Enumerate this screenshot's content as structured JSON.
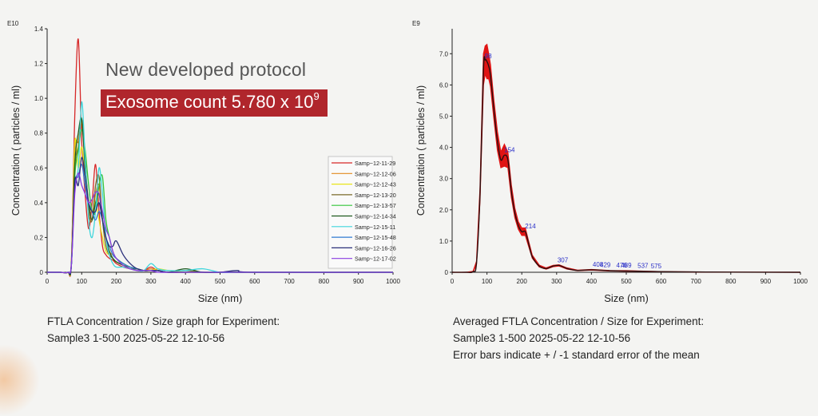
{
  "chart_data": [
    {
      "type": "line",
      "xlabel": "Size (nm)",
      "ylabel": "Concentration ( particles / ml)",
      "y_exponent_label": "E10",
      "xlim": [
        0,
        1000
      ],
      "ylim": [
        0,
        1.4
      ],
      "x_ticks": [
        0,
        100,
        200,
        300,
        400,
        500,
        600,
        700,
        800,
        900,
        1000
      ],
      "y_ticks": [
        0,
        0.2,
        0.4,
        0.6,
        0.8,
        1.0,
        1.2,
        1.4
      ],
      "y_tick_labels": [
        "0",
        "0.2",
        "0.4",
        "0.6",
        "0.8",
        "1.0",
        "1.2",
        "1.4"
      ],
      "x_grid": [
        0,
        20,
        40,
        60,
        70,
        80,
        90,
        100,
        110,
        120,
        130,
        140,
        150,
        160,
        170,
        180,
        190,
        200,
        220,
        240,
        260,
        280,
        300,
        320,
        350,
        400,
        450,
        500,
        550,
        600,
        1000
      ],
      "series": [
        {
          "name": "Samp~12-11-29",
          "color": "#d62728",
          "y": [
            0,
            0,
            0,
            0,
            0.06,
            0.9,
            1.34,
            0.75,
            0.45,
            0.25,
            0.4,
            0.62,
            0.35,
            0.15,
            0.1,
            0.08,
            0.07,
            0.05,
            0.03,
            0.02,
            0.01,
            0.01,
            0.03,
            0.01,
            0,
            0,
            0,
            0,
            0,
            0,
            0
          ]
        },
        {
          "name": "Samp~12-12-06",
          "color": "#e08a1e",
          "y": [
            0,
            0,
            0,
            0,
            0.05,
            0.7,
            0.75,
            0.86,
            0.6,
            0.35,
            0.3,
            0.45,
            0.5,
            0.3,
            0.2,
            0.12,
            0.1,
            0.08,
            0.05,
            0.03,
            0.02,
            0.01,
            0.02,
            0.01,
            0,
            0,
            0,
            0,
            0,
            0,
            0
          ]
        },
        {
          "name": "Samp~12-12-43",
          "color": "#e8e41c",
          "y": [
            0,
            0,
            0,
            0,
            0.05,
            0.75,
            0.6,
            0.72,
            0.55,
            0.4,
            0.35,
            0.4,
            0.3,
            0.2,
            0.12,
            0.1,
            0.08,
            0.06,
            0.04,
            0.02,
            0.02,
            0.01,
            0.01,
            0.02,
            0.01,
            0,
            0,
            0,
            0,
            0,
            0
          ]
        },
        {
          "name": "Samp~12-13-20",
          "color": "#7a6a2a",
          "y": [
            0,
            0,
            0,
            0,
            0.04,
            0.6,
            0.72,
            0.88,
            0.65,
            0.35,
            0.3,
            0.5,
            0.55,
            0.3,
            0.15,
            0.1,
            0.08,
            0.06,
            0.04,
            0.03,
            0.02,
            0.01,
            0.01,
            0.01,
            0,
            0.01,
            0,
            0,
            0,
            0,
            0
          ]
        },
        {
          "name": "Samp~12-13-57",
          "color": "#33c43a",
          "y": [
            0,
            0,
            0,
            0,
            0.04,
            0.55,
            0.7,
            0.82,
            0.7,
            0.5,
            0.35,
            0.35,
            0.5,
            0.55,
            0.3,
            0.2,
            0.12,
            0.08,
            0.05,
            0.03,
            0.02,
            0.01,
            0.01,
            0.01,
            0,
            0,
            0,
            0,
            0,
            0,
            0
          ]
        },
        {
          "name": "Samp~12-14-34",
          "color": "#1f5a1f",
          "y": [
            0,
            0,
            0,
            0,
            0.04,
            0.62,
            0.8,
            0.88,
            0.6,
            0.4,
            0.3,
            0.4,
            0.45,
            0.3,
            0.2,
            0.12,
            0.08,
            0.06,
            0.04,
            0.02,
            0.02,
            0.01,
            0.01,
            0.01,
            0,
            0.02,
            0,
            0,
            0,
            0,
            0
          ]
        },
        {
          "name": "Samp~12-15-11",
          "color": "#3fd6dc",
          "y": [
            0,
            0,
            0,
            0,
            0.04,
            0.5,
            0.6,
            0.98,
            0.65,
            0.3,
            0.2,
            0.35,
            0.6,
            0.45,
            0.2,
            0.1,
            0.05,
            0.03,
            0.03,
            0.02,
            0.01,
            0.01,
            0.05,
            0.02,
            0.01,
            0.01,
            0.02,
            0,
            0,
            0,
            0
          ]
        },
        {
          "name": "Samp~12-15-48",
          "color": "#2f7bd1",
          "y": [
            0,
            0,
            0,
            0,
            0.04,
            0.5,
            0.55,
            0.62,
            0.5,
            0.4,
            0.35,
            0.3,
            0.35,
            0.3,
            0.2,
            0.15,
            0.1,
            0.08,
            0.05,
            0.03,
            0.02,
            0.01,
            0.01,
            0.01,
            0,
            0,
            0,
            0,
            0,
            0,
            0
          ]
        },
        {
          "name": "Samp~12-16-26",
          "color": "#2a2f7a",
          "y": [
            0,
            0,
            0,
            0,
            0.04,
            0.52,
            0.5,
            0.66,
            0.55,
            0.4,
            0.35,
            0.35,
            0.4,
            0.3,
            0.2,
            0.15,
            0.15,
            0.18,
            0.1,
            0.05,
            0.02,
            0.01,
            0.01,
            0.01,
            0,
            0,
            0,
            0,
            0.01,
            0,
            0
          ]
        },
        {
          "name": "Samp~12-17-02",
          "color": "#8a3be0",
          "y": [
            0,
            0,
            0,
            0,
            0.04,
            0.45,
            0.57,
            0.5,
            0.45,
            0.4,
            0.42,
            0.46,
            0.45,
            0.35,
            0.25,
            0.2,
            0.12,
            0.08,
            0.04,
            0.02,
            0.01,
            0.01,
            0.01,
            0,
            0,
            0,
            0,
            0,
            0,
            0,
            0
          ]
        }
      ],
      "caption_line1": "FTLA Concentration / Size graph for Experiment:",
      "caption_line2": "Sample3 1-500 2025-05-22 12-10-56"
    },
    {
      "type": "line",
      "xlabel": "Size (nm)",
      "ylabel": "Concentration ( particles / ml)",
      "y_exponent_label": "E9",
      "xlim": [
        0,
        1000
      ],
      "ylim": [
        0,
        7.8
      ],
      "x_ticks": [
        0,
        100,
        200,
        300,
        400,
        500,
        600,
        700,
        800,
        900,
        1000
      ],
      "y_ticks": [
        0,
        1.0,
        2.0,
        3.0,
        4.0,
        5.0,
        6.0,
        7.0
      ],
      "y_tick_labels": [
        "0",
        "1.0",
        "2.0",
        "3.0",
        "4.0",
        "5.0",
        "6.0",
        "7.0"
      ],
      "x": [
        0,
        40,
        60,
        70,
        80,
        90,
        95,
        100,
        105,
        110,
        120,
        130,
        140,
        150,
        160,
        170,
        180,
        190,
        200,
        210,
        220,
        230,
        250,
        270,
        290,
        307,
        330,
        360,
        400,
        450,
        500,
        600,
        700,
        800,
        1000
      ],
      "mean": [
        0,
        0,
        0.02,
        0.3,
        2.5,
        6.5,
        6.8,
        6.75,
        6.6,
        6.3,
        5.2,
        4.2,
        3.6,
        3.75,
        3.6,
        2.6,
        1.9,
        1.5,
        1.3,
        1.3,
        0.9,
        0.5,
        0.2,
        0.12,
        0.2,
        0.22,
        0.12,
        0.06,
        0.08,
        0.05,
        0.04,
        0.02,
        0.01,
        0.005,
        0
      ],
      "sem": [
        0,
        0,
        0.01,
        0.05,
        0.2,
        0.5,
        0.45,
        0.55,
        0.4,
        0.35,
        0.3,
        0.3,
        0.25,
        0.35,
        0.25,
        0.2,
        0.15,
        0.12,
        0.12,
        0.12,
        0.08,
        0.05,
        0.03,
        0.02,
        0.02,
        0.02,
        0.02,
        0.01,
        0.01,
        0.01,
        0.01,
        0,
        0,
        0,
        0
      ],
      "annotations": [
        {
          "label": "98",
          "x": 98,
          "y": 6.75
        },
        {
          "label": "154",
          "x": 154,
          "y": 3.75
        },
        {
          "label": "214",
          "x": 214,
          "y": 1.3
        },
        {
          "label": "307",
          "x": 307,
          "y": 0.22
        },
        {
          "label": "408",
          "x": 408,
          "y": 0.08
        },
        {
          "label": "429",
          "x": 429,
          "y": 0.06
        },
        {
          "label": "476",
          "x": 476,
          "y": 0.05
        },
        {
          "label": "489",
          "x": 489,
          "y": 0.05
        },
        {
          "label": "537",
          "x": 537,
          "y": 0.04
        },
        {
          "label": "575",
          "x": 575,
          "y": 0.03
        }
      ],
      "caption_line1": "Averaged FTLA Concentration / Size for Experiment:",
      "caption_line2": "Sample3 1-500 2025-05-22 12-10-56",
      "caption_line3": "Error bars indicate + / -1 standard error of the mean"
    }
  ],
  "overlay": {
    "title": "New developed protocol",
    "badge_text": "Exosome count 5.780 x 10",
    "badge_exponent": "9"
  },
  "colors": {
    "background": "#f4f4f2",
    "badge": "#b0262c",
    "annotation": "#2a2fc8",
    "mean_line": "#2a0f0f",
    "error_band": "#e01414"
  }
}
